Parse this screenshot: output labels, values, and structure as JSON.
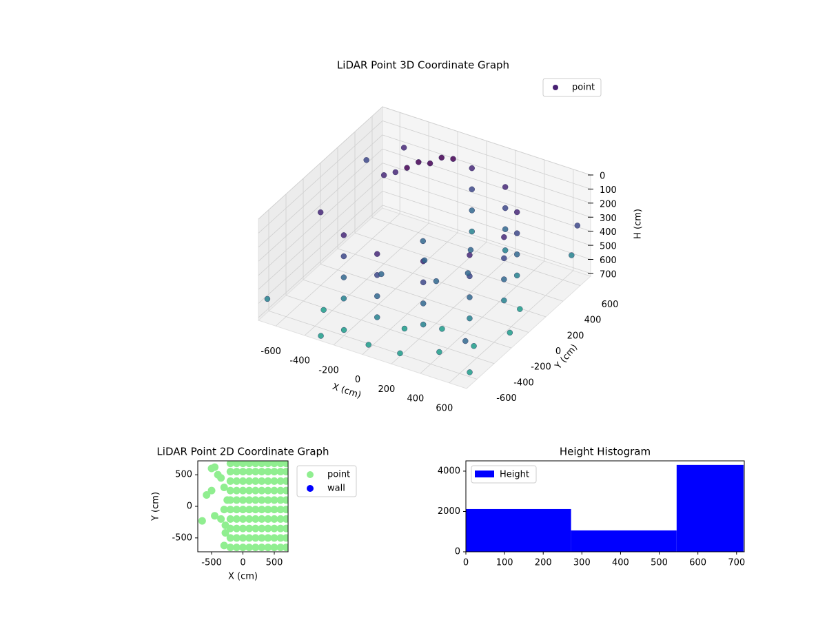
{
  "chart_data": [
    {
      "type": "scatter3d",
      "title": "LiDAR Point 3D Coordinate Graph",
      "xlabel": "X (cm)",
      "ylabel": "Y (cm)",
      "zlabel": "H (cm)",
      "xlim": [
        -720,
        720
      ],
      "ylim": [
        -720,
        720
      ],
      "zlim": [
        720,
        0
      ],
      "xticks": [
        -600,
        -400,
        -200,
        0,
        200,
        400,
        600
      ],
      "yticks": [
        -600,
        -400,
        -200,
        0,
        200,
        400,
        600
      ],
      "zticks": [
        0,
        100,
        200,
        300,
        400,
        500,
        600,
        700
      ],
      "grid": true,
      "legend": "upper right",
      "series": [
        {
          "name": "point",
          "color": "#482173",
          "colormap": "viridis",
          "x": [
            -700,
            -600,
            -500,
            700,
            700,
            600,
            -300,
            700,
            -700,
            -250,
            -200,
            -300,
            -150,
            -350,
            -100,
            -400,
            0,
            275,
            476,
            550,
            476,
            275,
            0,
            -275,
            0,
            275,
            476,
            550,
            476,
            275,
            0,
            -275,
            0,
            275,
            476,
            550,
            476,
            275,
            0,
            -275,
            0,
            275,
            476,
            550,
            476,
            275,
            0,
            -275,
            0,
            200,
            200,
            -100,
            300,
            -150,
            -200,
            0,
            200,
            400,
            550,
            650,
            -400,
            100,
            300,
            600
          ],
          "y": [
            500,
            -200,
            600,
            -650,
            -700,
            700,
            -700,
            600,
            -650,
            350,
            400,
            300,
            450,
            250,
            500,
            200,
            -550,
            -476,
            -275,
            0,
            275,
            476,
            550,
            -476,
            -550,
            -476,
            -275,
            0,
            275,
            476,
            550,
            -476,
            -550,
            -476,
            -275,
            0,
            275,
            476,
            550,
            -476,
            -550,
            -476,
            -275,
            0,
            275,
            476,
            550,
            -476,
            0,
            -200,
            200,
            150,
            0,
            -250,
            -600,
            -650,
            -620,
            -500,
            -350,
            -100,
            -500,
            -400,
            -300,
            100
          ],
          "z": [
            250,
            200,
            150,
            650,
            400,
            600,
            700,
            300,
            600,
            30,
            50,
            60,
            20,
            80,
            40,
            90,
            100,
            100,
            100,
            100,
            100,
            100,
            100,
            100,
            250,
            250,
            250,
            250,
            250,
            250,
            250,
            250,
            400,
            400,
            400,
            400,
            400,
            400,
            400,
            400,
            550,
            550,
            550,
            550,
            550,
            550,
            550,
            550,
            450,
            420,
            420,
            430,
            440,
            460,
            680,
            690,
            700,
            690,
            680,
            690,
            660,
            680,
            670,
            650
          ]
        }
      ]
    },
    {
      "type": "scatter",
      "title": "LiDAR Point 2D Coordinate Graph",
      "xlabel": "X (cm)",
      "ylabel": "Y (cm)",
      "xlim": [
        -720,
        720
      ],
      "ylim": [
        -720,
        720
      ],
      "xticks": [
        -500,
        0,
        500
      ],
      "yticks": [
        -500,
        0,
        500
      ],
      "legend": "upper left outside",
      "series": [
        {
          "name": "point",
          "color": "#90ee90",
          "x": [
            -200,
            -100,
            0,
            100,
            200,
            300,
            400,
            500,
            600,
            690,
            -200,
            -100,
            0,
            100,
            200,
            300,
            400,
            500,
            600,
            690,
            -200,
            -100,
            0,
            100,
            200,
            300,
            400,
            500,
            600,
            690,
            -200,
            -100,
            0,
            100,
            200,
            300,
            400,
            500,
            600,
            690,
            -200,
            -100,
            0,
            100,
            200,
            300,
            400,
            500,
            600,
            690,
            -200,
            -100,
            0,
            100,
            200,
            300,
            400,
            500,
            600,
            690,
            -200,
            -100,
            0,
            100,
            200,
            300,
            400,
            500,
            600,
            690,
            -200,
            -100,
            0,
            100,
            200,
            300,
            400,
            500,
            600,
            690,
            -200,
            -100,
            0,
            100,
            200,
            300,
            400,
            500,
            600,
            690,
            -200,
            -100,
            0,
            100,
            200,
            300,
            400,
            500,
            600,
            690,
            -650,
            -580,
            -500,
            -450,
            -400,
            -350,
            -300,
            -250,
            -300,
            -350,
            -280,
            -450,
            -500,
            -300,
            -280
          ],
          "y": [
            -650,
            -650,
            -650,
            -650,
            -650,
            -650,
            -650,
            -650,
            -650,
            -650,
            -500,
            -500,
            -500,
            -500,
            -500,
            -500,
            -500,
            -500,
            -500,
            -500,
            -350,
            -350,
            -350,
            -350,
            -350,
            -350,
            -350,
            -350,
            -350,
            -350,
            -200,
            -200,
            -200,
            -200,
            -200,
            -200,
            -200,
            -200,
            -200,
            -200,
            -50,
            -50,
            -50,
            -50,
            -50,
            -50,
            -50,
            -50,
            -50,
            -50,
            100,
            100,
            100,
            100,
            100,
            100,
            100,
            100,
            100,
            100,
            250,
            250,
            250,
            250,
            250,
            250,
            250,
            250,
            250,
            250,
            400,
            400,
            400,
            400,
            400,
            400,
            400,
            400,
            400,
            400,
            550,
            550,
            550,
            550,
            550,
            550,
            550,
            550,
            550,
            550,
            680,
            680,
            680,
            680,
            680,
            680,
            680,
            680,
            680,
            680,
            -230,
            180,
            600,
            620,
            500,
            450,
            300,
            100,
            -50,
            -200,
            -300,
            -150,
            250,
            -620,
            -420
          ]
        },
        {
          "name": "wall",
          "color": "#0000ff",
          "x": [],
          "y": []
        }
      ]
    },
    {
      "type": "histogram",
      "title": "Height Histogram",
      "bins": [
        0,
        272,
        545,
        718
      ],
      "xlim": [
        0,
        720
      ],
      "ylim": [
        0,
        4510
      ],
      "xticks": [
        0,
        100,
        200,
        300,
        400,
        500,
        600,
        700
      ],
      "yticks": [
        0,
        2000,
        4000
      ],
      "legend": "upper left",
      "series": [
        {
          "name": "Height",
          "color": "#0000ff",
          "values": [
            2120,
            1060,
            4310
          ]
        }
      ]
    }
  ]
}
